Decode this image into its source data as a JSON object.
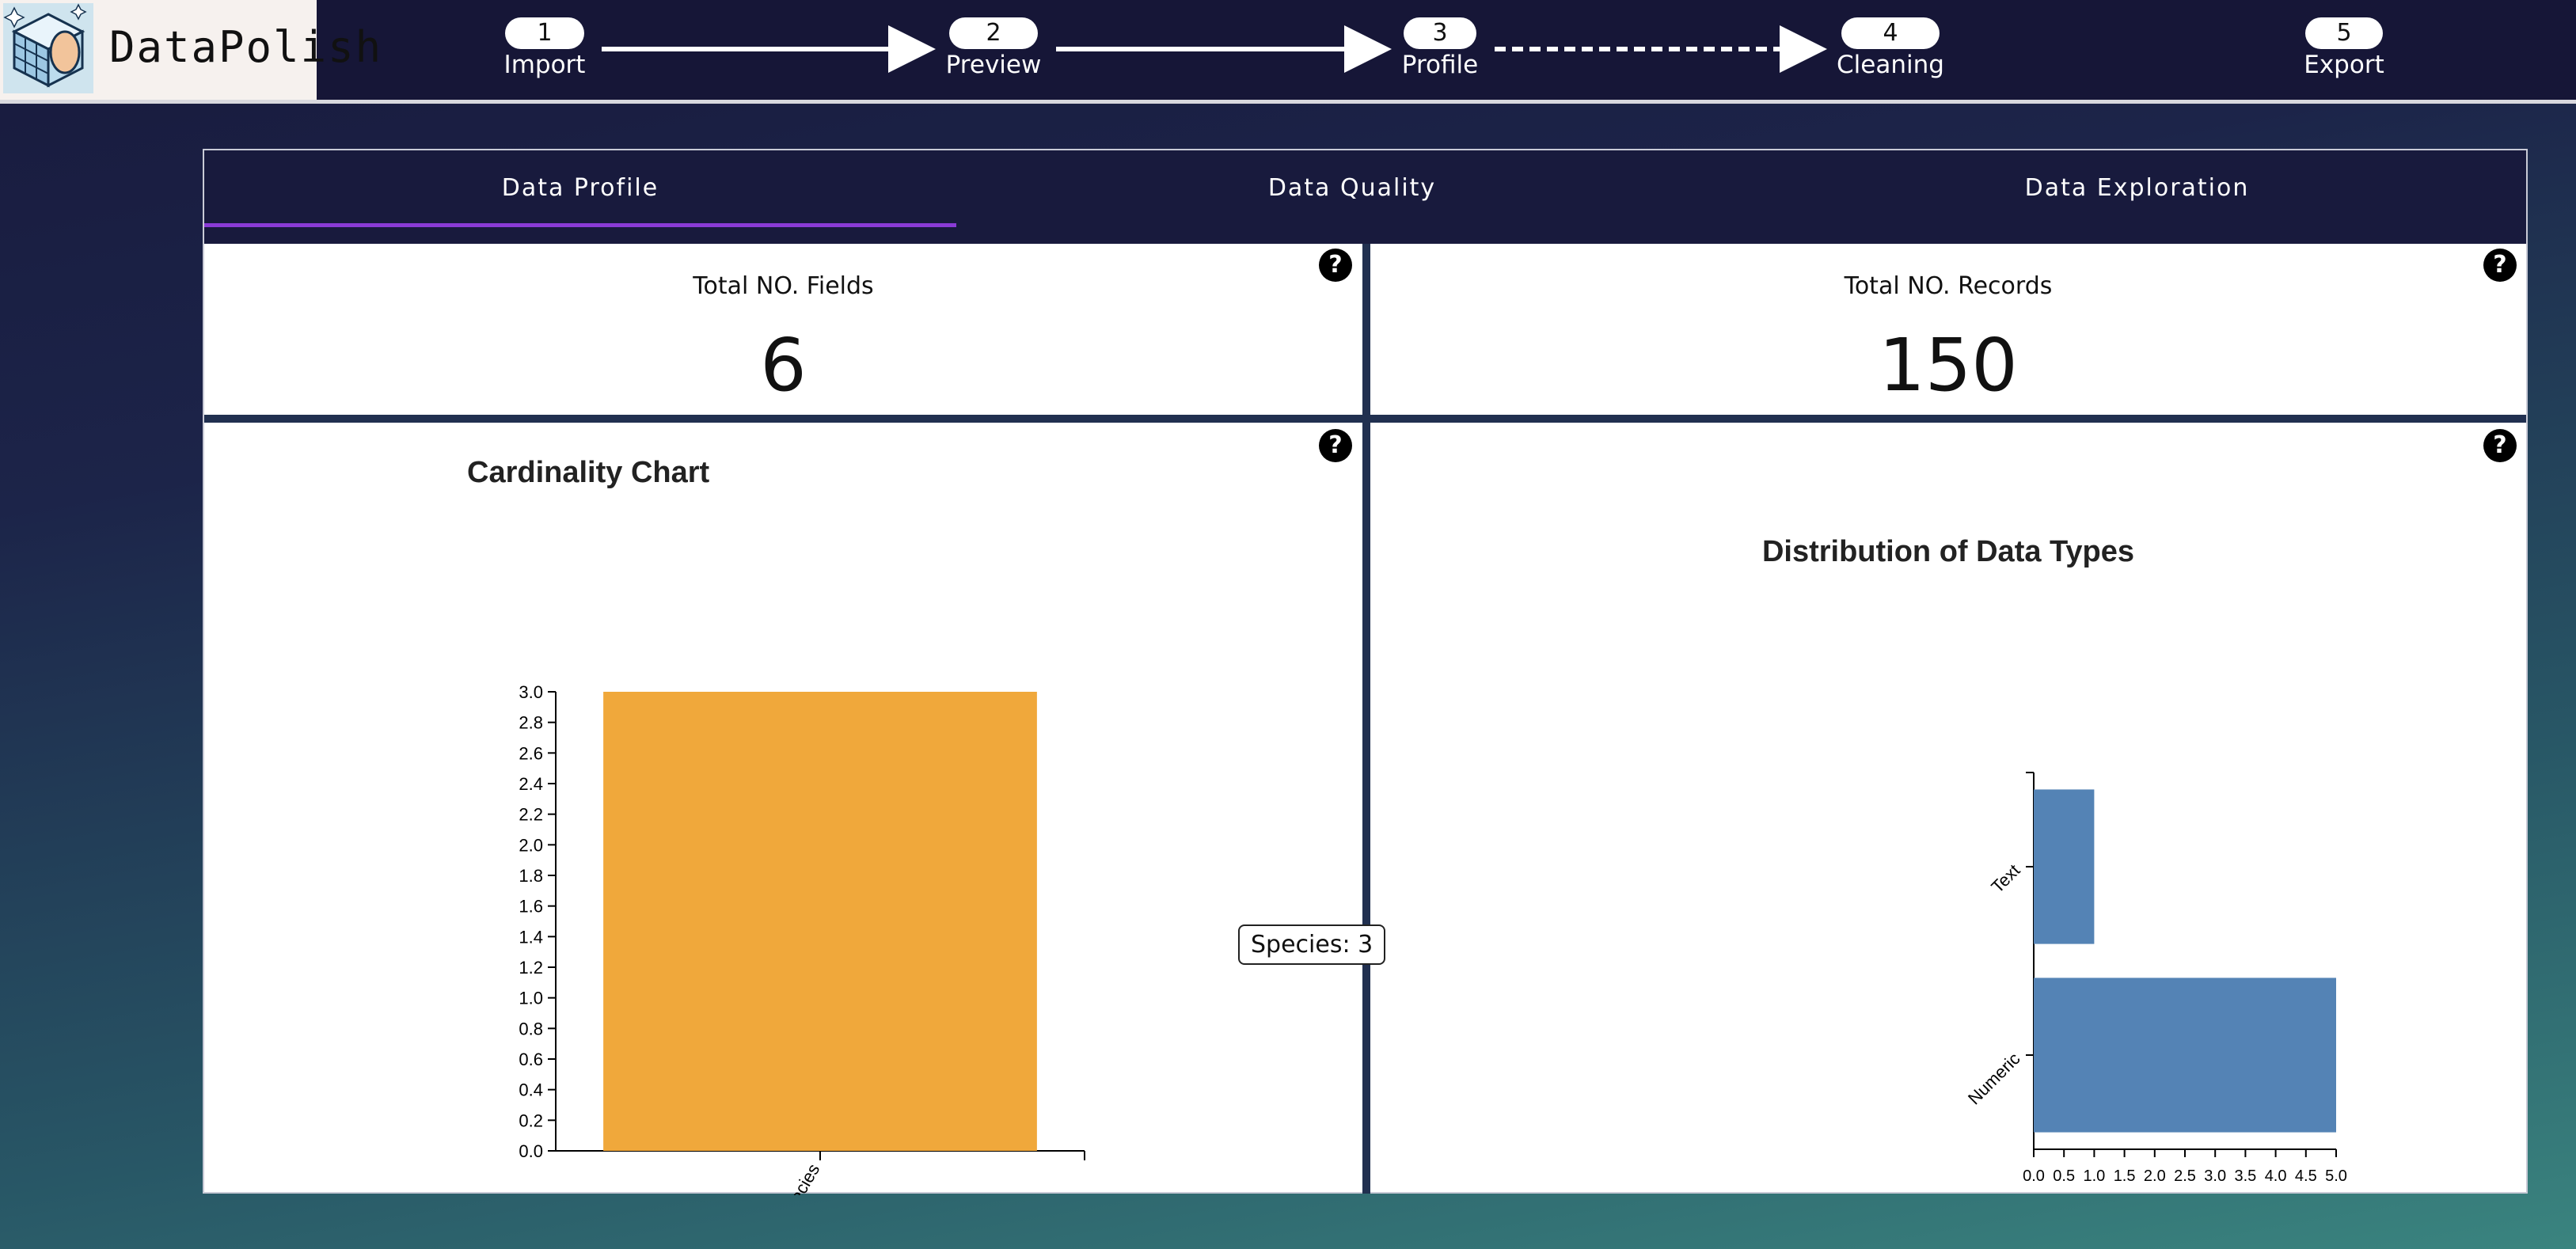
{
  "app": {
    "name": "DataPolish"
  },
  "steps": [
    {
      "num": "1",
      "label": "Import"
    },
    {
      "num": "2",
      "label": "Preview"
    },
    {
      "num": "3",
      "label": "Profile"
    },
    {
      "num": "4",
      "label": "Cleaning"
    },
    {
      "num": "5",
      "label": "Export"
    }
  ],
  "tabs": [
    {
      "label": "Data Profile"
    },
    {
      "label": "Data Quality"
    },
    {
      "label": "Data Exploration"
    }
  ],
  "stats": {
    "fields_title": "Total NO. Fields",
    "fields_value": "6",
    "records_title": "Total NO. Records",
    "records_value": "150"
  },
  "help_label": "?",
  "cardinality": {
    "tooltip": "Species: 3"
  },
  "colors": {
    "accent": "#8a3bd6",
    "cardinality_bar": "#f0a83b",
    "types_bar": "#5483b5",
    "header_bg": "#161637"
  },
  "chart_data": [
    {
      "type": "bar",
      "title": "Cardinality Chart",
      "categories": [
        "Species"
      ],
      "values": [
        3
      ],
      "ylim": [
        0,
        3
      ],
      "yticks": [
        "0.0",
        "0.2",
        "0.4",
        "0.6",
        "0.8",
        "1.0",
        "1.2",
        "1.4",
        "1.6",
        "1.8",
        "2.0",
        "2.2",
        "2.4",
        "2.6",
        "2.8",
        "3.0"
      ]
    },
    {
      "type": "bar",
      "orientation": "horizontal",
      "title": "Distribution of Data Types",
      "categories": [
        "Text",
        "Numeric"
      ],
      "values": [
        1,
        5
      ],
      "xlim": [
        0,
        5
      ],
      "xticks": [
        "0.0",
        "0.5",
        "1.0",
        "1.5",
        "2.0",
        "2.5",
        "3.0",
        "3.5",
        "4.0",
        "4.5",
        "5.0"
      ]
    }
  ]
}
